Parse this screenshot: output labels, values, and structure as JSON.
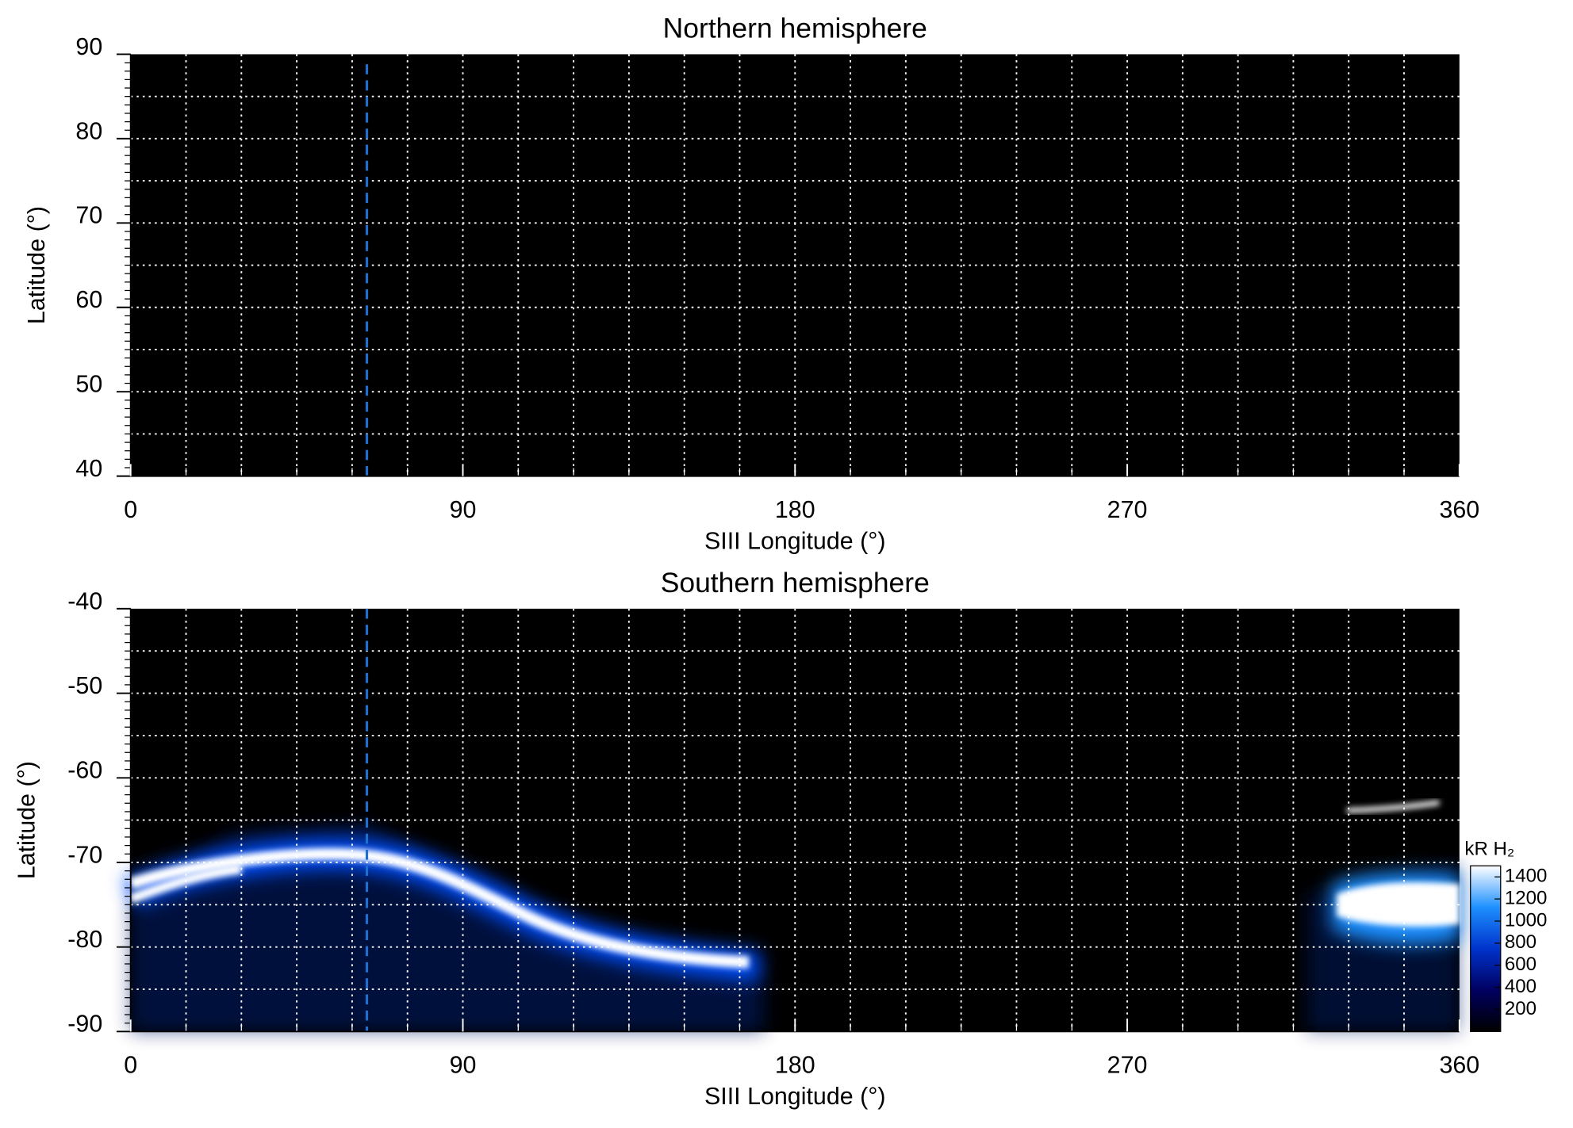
{
  "chart_data": [
    {
      "type": "heatmap",
      "title": "Northern hemisphere",
      "xlabel": "SIII Longitude (°)",
      "ylabel": "Latitude (°)",
      "xlim": [
        0,
        360
      ],
      "xticks": [
        0,
        90,
        180,
        270,
        360
      ],
      "ylim": [
        40,
        90
      ],
      "yticks": [
        40,
        50,
        60,
        70,
        80,
        90
      ],
      "xgrid": [
        15,
        30,
        45,
        60,
        75,
        90,
        105,
        120,
        135,
        150,
        165,
        180,
        195,
        210,
        225,
        240,
        255,
        270,
        285,
        300,
        315,
        330,
        345
      ],
      "ygrid": [
        45,
        50,
        55,
        60,
        65,
        70,
        75,
        80,
        85
      ],
      "yminor_step": 1,
      "reference_x": 64,
      "reference_color": "#1f6fd1"
    },
    {
      "type": "heatmap",
      "title": "Southern hemisphere",
      "xlabel": "SIII Longitude (°)",
      "ylabel": "Latitude (°)",
      "xlim": [
        0,
        360
      ],
      "xticks": [
        0,
        90,
        180,
        270,
        360
      ],
      "ylim": [
        -90,
        -40
      ],
      "yticks": [
        -90,
        -80,
        -70,
        -60,
        -50,
        -40
      ],
      "xgrid": [
        15,
        30,
        45,
        60,
        75,
        90,
        105,
        120,
        135,
        150,
        165,
        180,
        195,
        210,
        225,
        240,
        255,
        270,
        285,
        300,
        315,
        330,
        345
      ],
      "ygrid": [
        -85,
        -80,
        -75,
        -70,
        -65,
        -60,
        -55,
        -50,
        -45
      ],
      "yminor_step": 1,
      "reference_x": 64,
      "reference_color": "#1f6fd1",
      "colorbar": {
        "label": "kR H₂",
        "lim": [
          0,
          1500
        ],
        "ticks": [
          200,
          400,
          600,
          800,
          1000,
          1200,
          1400
        ],
        "colors": [
          "#000000",
          "#000060",
          "#0033cc",
          "#1e90ff",
          "#ffffff"
        ]
      }
    }
  ]
}
